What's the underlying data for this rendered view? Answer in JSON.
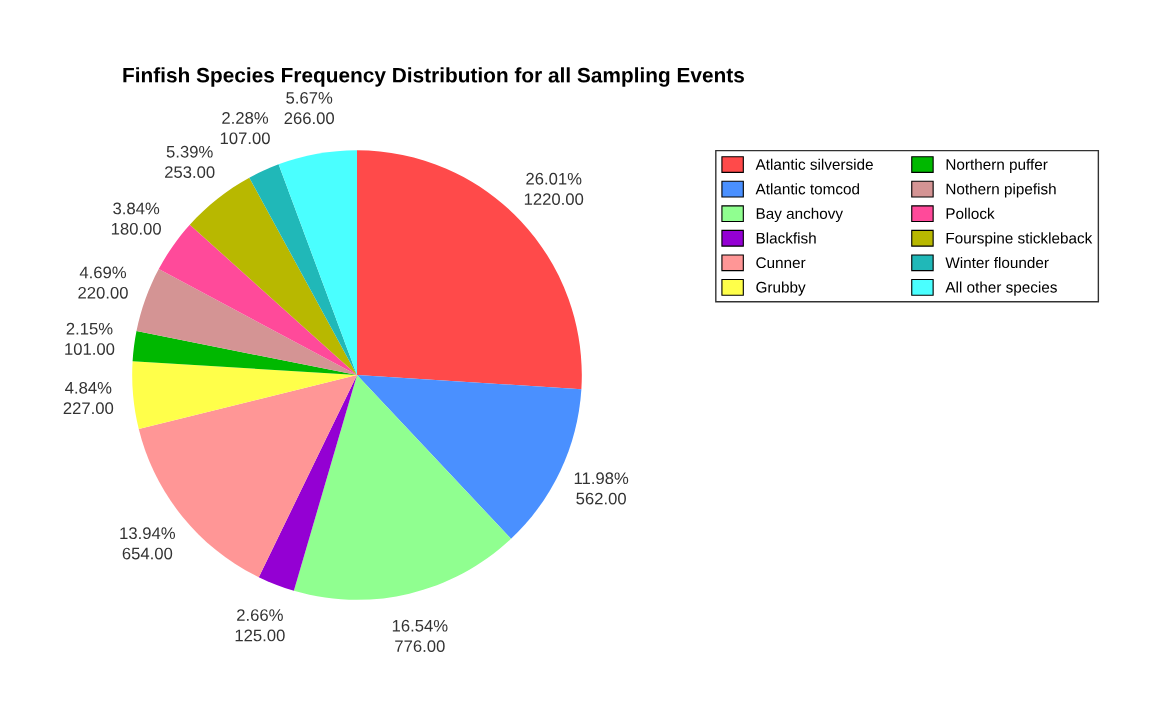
{
  "chart_data": {
    "type": "pie",
    "title": "Finfish Species Frequency Distribution for all Sampling Events",
    "categories": [
      "Atlantic silverside",
      "Atlantic tomcod",
      "Bay anchovy",
      "Blackfish",
      "Cunner",
      "Grubby",
      "Northern puffer",
      "Nothern pipefish",
      "Pollock",
      "Fourspine stickleback",
      "Winter flounder",
      "All other species"
    ],
    "values": [
      1220,
      562,
      776,
      125,
      654,
      227,
      101,
      220,
      180,
      253,
      107,
      266
    ],
    "colors": [
      "#ff4a4a",
      "#4a90ff",
      "#90ff90",
      "#9400d3",
      "#ff9696",
      "#ffff4a",
      "#00b800",
      "#d49494",
      "#ff4a9a",
      "#b8b800",
      "#20b8b8",
      "#4affff"
    ],
    "value_labels": [
      "26.01%\n1220.00",
      "11.98%\n562.00",
      "16.54%\n776.00",
      "2.66%\n125.00",
      "13.94%\n654.00",
      "4.84%\n227.00",
      "2.15%\n101.00",
      "4.69%\n220.00",
      "3.84%\n180.00",
      "5.39%\n253.00",
      "2.28%\n107.00",
      "5.67%\n266.00"
    ],
    "legend": "top right"
  }
}
